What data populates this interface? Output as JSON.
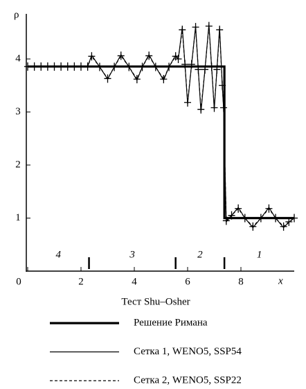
{
  "chart_data": {
    "type": "line",
    "title": "Тест Shu–Osher",
    "x_label": "x",
    "y_label": "ρ",
    "xlim": [
      0,
      10
    ],
    "ylim": [
      0,
      4.85
    ],
    "xticks": [
      0,
      2,
      4,
      6,
      8
    ],
    "yticks": [
      1,
      2,
      3,
      4
    ],
    "region_labels": [
      "4",
      "3",
      "2",
      "1"
    ],
    "region_boundaries": [
      2.3,
      5.55,
      7.38
    ],
    "series": [
      {
        "name": "Решение Римана",
        "color": "#000000",
        "style": "thick",
        "x": [
          0,
          7.38,
          7.38,
          10
        ],
        "values": [
          3.857,
          3.857,
          1,
          1
        ]
      },
      {
        "name": "Сетка 1, WENO5, SSP54",
        "color": "#000000",
        "style": "solid",
        "x": [
          0,
          0.25,
          0.5,
          0.75,
          1,
          1.25,
          1.5,
          1.75,
          2,
          2.25,
          2.4,
          2.7,
          3.0,
          3.25,
          3.5,
          3.8,
          4.1,
          4.3,
          4.55,
          4.8,
          5.1,
          5.3,
          5.55,
          5.65,
          5.8,
          5.9,
          6.0,
          6.15,
          6.3,
          6.4,
          6.5,
          6.65,
          6.8,
          6.9,
          7.0,
          7.1,
          7.2,
          7.3,
          7.35,
          7.45,
          7.65,
          7.9,
          8.15,
          8.45,
          8.75,
          9.05,
          9.3,
          9.6,
          9.8,
          10
        ],
        "values": [
          3.857,
          3.857,
          3.857,
          3.857,
          3.857,
          3.857,
          3.857,
          3.857,
          3.857,
          3.857,
          4.07,
          3.85,
          3.62,
          3.85,
          4.08,
          3.85,
          3.6,
          3.85,
          4.08,
          3.85,
          3.6,
          3.85,
          4.07,
          4.0,
          4.6,
          3.9,
          3.15,
          3.9,
          4.62,
          3.8,
          3.0,
          3.8,
          4.65,
          3.85,
          3.05,
          3.8,
          4.6,
          3.5,
          3.05,
          0.93,
          1.05,
          1.2,
          1.0,
          0.82,
          1.0,
          1.2,
          1.0,
          0.82,
          0.92,
          1.0
        ]
      },
      {
        "name": "Сетка 2, WENO5, SSP22",
        "color": "#000000",
        "style": "dashed",
        "markers": "plus",
        "x": [
          0,
          0.25,
          0.5,
          0.75,
          1,
          1.25,
          1.5,
          1.75,
          2,
          2.25,
          2.4,
          2.7,
          3.0,
          3.25,
          3.5,
          3.8,
          4.1,
          4.3,
          4.55,
          4.8,
          5.1,
          5.3,
          5.55,
          5.65,
          5.8,
          5.9,
          6.0,
          6.15,
          6.3,
          6.4,
          6.5,
          6.65,
          6.8,
          6.9,
          7.0,
          7.1,
          7.2,
          7.3,
          7.35,
          7.45,
          7.65,
          7.9,
          8.15,
          8.45,
          8.75,
          9.05,
          9.3,
          9.6,
          9.8,
          10
        ],
        "values": [
          3.857,
          3.857,
          3.857,
          3.857,
          3.857,
          3.857,
          3.857,
          3.857,
          3.857,
          3.857,
          4.05,
          3.85,
          3.63,
          3.85,
          4.06,
          3.85,
          3.62,
          3.85,
          4.06,
          3.85,
          3.62,
          3.85,
          4.05,
          4.0,
          4.55,
          3.9,
          3.18,
          3.9,
          4.6,
          3.8,
          3.05,
          3.8,
          4.62,
          3.85,
          3.08,
          3.8,
          4.55,
          3.5,
          3.08,
          0.95,
          1.05,
          1.18,
          1.0,
          0.84,
          1.0,
          1.18,
          1.0,
          0.84,
          0.93,
          1.0
        ]
      }
    ]
  }
}
